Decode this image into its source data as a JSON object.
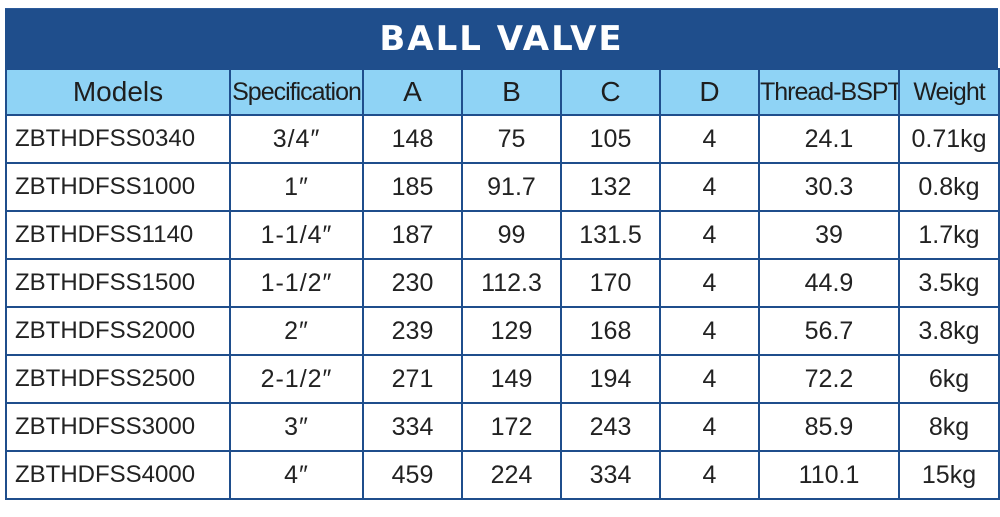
{
  "title": "BALL VALVE",
  "colors": {
    "title_bg": "#1f4e8c",
    "header_bg": "#8fd3f5",
    "border": "#1f4e8c"
  },
  "table": {
    "headers": [
      "Models",
      "Specification",
      "A",
      "B",
      "C",
      "D",
      "Thread-BSPT",
      "Weight"
    ],
    "rows": [
      [
        "ZBTHDFSS0340",
        "3/4″",
        "148",
        "75",
        "105",
        "4",
        "24.1",
        "0.71kg"
      ],
      [
        "ZBTHDFSS1000",
        "1″",
        "185",
        "91.7",
        "132",
        "4",
        "30.3",
        "0.8kg"
      ],
      [
        "ZBTHDFSS1140",
        "1-1/4″",
        "187",
        "99",
        "131.5",
        "4",
        "39",
        "1.7kg"
      ],
      [
        "ZBTHDFSS1500",
        "1-1/2″",
        "230",
        "112.3",
        "170",
        "4",
        "44.9",
        "3.5kg"
      ],
      [
        "ZBTHDFSS2000",
        "2″",
        "239",
        "129",
        "168",
        "4",
        "56.7",
        "3.8kg"
      ],
      [
        "ZBTHDFSS2500",
        "2-1/2″",
        "271",
        "149",
        "194",
        "4",
        "72.2",
        "6kg"
      ],
      [
        "ZBTHDFSS3000",
        "3″",
        "334",
        "172",
        "243",
        "4",
        "85.9",
        "8kg"
      ],
      [
        "ZBTHDFSS4000",
        "4″",
        "459",
        "224",
        "334",
        "4",
        "110.1",
        "15kg"
      ]
    ]
  }
}
